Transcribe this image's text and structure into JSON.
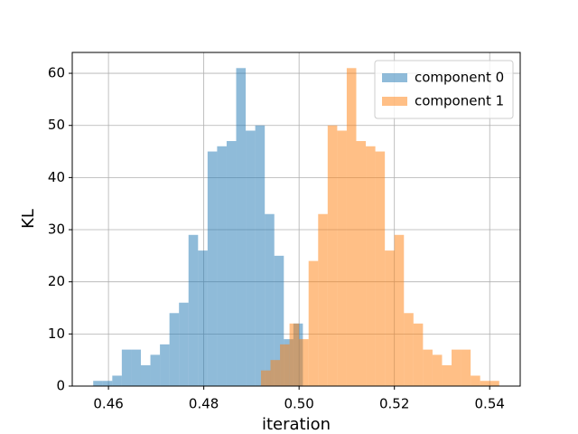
{
  "chart_data": {
    "type": "histogram",
    "xlabel": "iteration",
    "ylabel": "KL",
    "series": [
      {
        "name": "component 0",
        "color": "#1f77b4",
        "opacity": 0.5,
        "bins": [
          0.4568,
          0.4588,
          0.4608,
          0.4628,
          0.4648,
          0.4668,
          0.4688,
          0.4708,
          0.4728,
          0.4748,
          0.4768,
          0.4788,
          0.4808,
          0.4828,
          0.4848,
          0.4868,
          0.4888,
          0.4908,
          0.4928,
          0.4948,
          0.4968,
          0.4988,
          0.5008
        ],
        "values": [
          1,
          1,
          2,
          7,
          7,
          4,
          6,
          8,
          14,
          16,
          29,
          26,
          45,
          46,
          47,
          61,
          49,
          50,
          33,
          25,
          9,
          12
        ]
      },
      {
        "name": "component 1",
        "color": "#ff7f0e",
        "opacity": 0.5,
        "bins": [
          0.492,
          0.494,
          0.496,
          0.498,
          0.5,
          0.502,
          0.504,
          0.506,
          0.508,
          0.51,
          0.512,
          0.514,
          0.516,
          0.518,
          0.52,
          0.522,
          0.524,
          0.526,
          0.528,
          0.53,
          0.532,
          0.534,
          0.536,
          0.538,
          0.54,
          0.542
        ],
        "values": [
          3,
          5,
          8,
          12,
          9,
          24,
          33,
          50,
          49,
          61,
          47,
          46,
          45,
          26,
          29,
          14,
          12,
          7,
          6,
          4,
          7,
          7,
          2,
          1,
          1
        ]
      }
    ],
    "xlim": [
      0.4524,
      0.5464
    ],
    "ylim": [
      0,
      64
    ],
    "xticks": [
      0.46,
      0.48,
      {
        "value": 0.5,
        "label": "0.50"
      },
      0.52,
      0.54
    ],
    "yticks": [
      0,
      10,
      20,
      30,
      40,
      50,
      60
    ],
    "grid": true,
    "legend": "upper right"
  }
}
